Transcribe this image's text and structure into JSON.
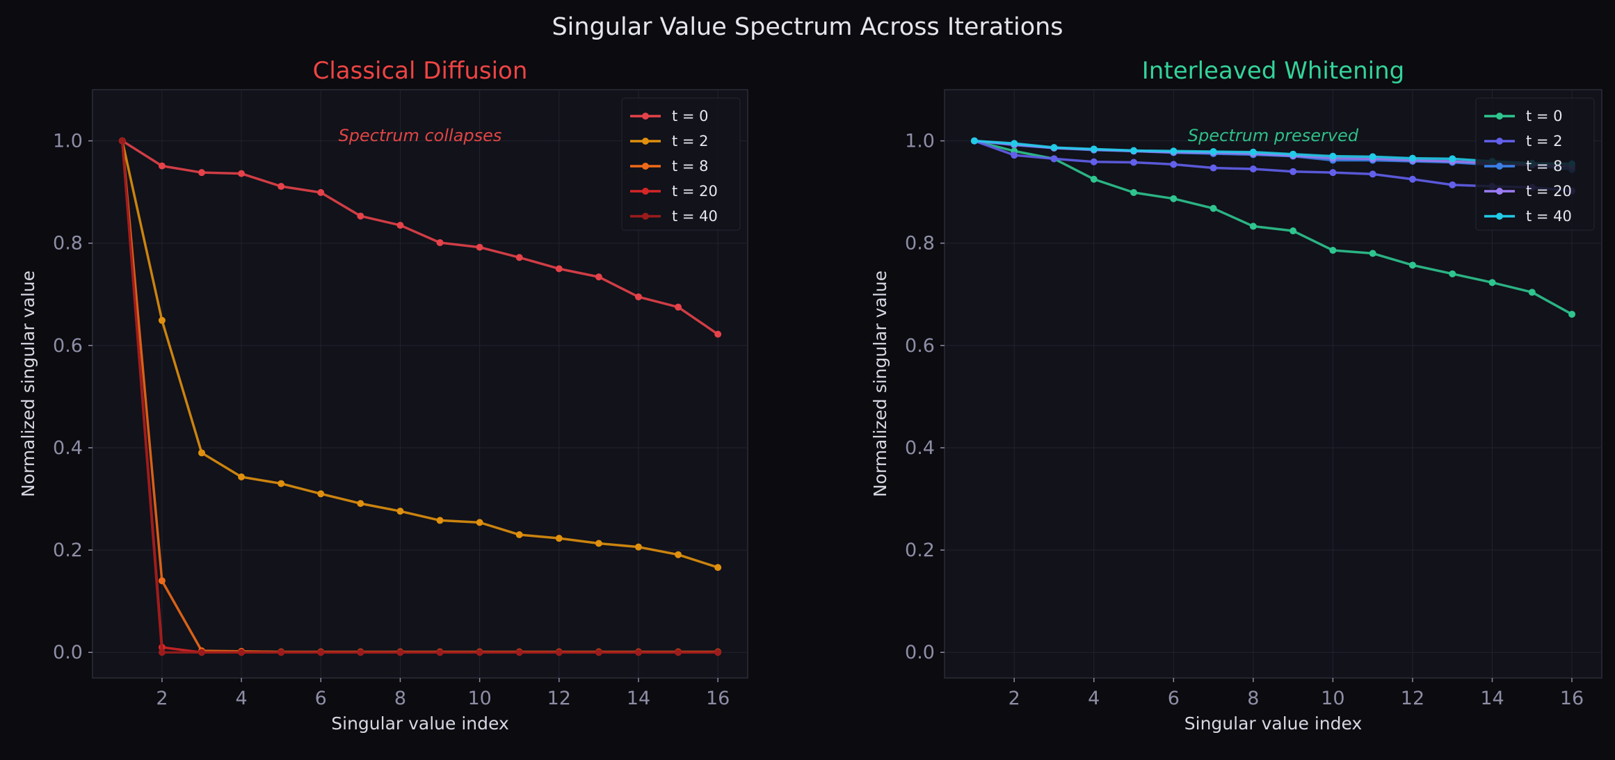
{
  "figure_title": "Singular Value Spectrum Across Iterations",
  "colors": {
    "background": "#0b0b10",
    "axes_bg": "#11121a",
    "tick": "#8e8ea6",
    "label": "#d8d8e4",
    "grid": "#22232d"
  },
  "chart_data": [
    {
      "type": "line",
      "title": "Classical Diffusion",
      "title_color": "#ef4444",
      "xlabel": "Singular value index",
      "ylabel": "Normalized singular value",
      "xlim": [
        0.25,
        16.75
      ],
      "ylim": [
        -0.05,
        1.1
      ],
      "xticks": [
        2,
        4,
        6,
        8,
        10,
        12,
        14,
        16
      ],
      "yticks": [
        "0.0",
        "0.2",
        "0.4",
        "0.6",
        "0.8",
        "1.0"
      ],
      "grid": true,
      "legend": "top-right",
      "annotation": {
        "text": "Spectrum collapses",
        "color": "#e04545"
      },
      "x": [
        1,
        2,
        3,
        4,
        5,
        6,
        7,
        8,
        9,
        10,
        11,
        12,
        13,
        14,
        15,
        16
      ],
      "series": [
        {
          "name": "t = 0",
          "color": "#e5424a",
          "values": [
            1.0,
            0.951,
            0.938,
            0.936,
            0.911,
            0.899,
            0.853,
            0.835,
            0.801,
            0.792,
            0.772,
            0.75,
            0.734,
            0.695,
            0.675,
            0.622
          ]
        },
        {
          "name": "t = 2",
          "color": "#e0900e",
          "values": [
            1.0,
            0.649,
            0.39,
            0.343,
            0.33,
            0.31,
            0.291,
            0.276,
            0.258,
            0.254,
            0.23,
            0.223,
            0.213,
            0.206,
            0.191,
            0.166
          ]
        },
        {
          "name": "t = 8",
          "color": "#ee6a18",
          "values": [
            1.0,
            0.14,
            0.003,
            0.002,
            0.001,
            0.001,
            0.001,
            0.001,
            0.001,
            0.001,
            0.001,
            0.001,
            0.001,
            0.001,
            0.001,
            0.001
          ]
        },
        {
          "name": "t = 20",
          "color": "#d42626",
          "values": [
            1.0,
            0.01,
            0.0,
            0.0,
            0.0,
            0.0,
            0.0,
            0.0,
            0.0,
            0.0,
            0.0,
            0.0,
            0.0,
            0.0,
            0.0,
            0.0
          ]
        },
        {
          "name": "t = 40",
          "color": "#9b1c1c",
          "values": [
            1.0,
            0.0,
            0.0,
            0.0,
            0.0,
            0.0,
            0.0,
            0.0,
            0.0,
            0.0,
            0.0,
            0.0,
            0.0,
            0.0,
            0.0,
            0.0
          ]
        }
      ]
    },
    {
      "type": "line",
      "title": "Interleaved Whitening",
      "title_color": "#34d399",
      "xlabel": "Singular value index",
      "ylabel": "Normalized singular value",
      "xlim": [
        0.25,
        16.75
      ],
      "ylim": [
        -0.05,
        1.1
      ],
      "xticks": [
        2,
        4,
        6,
        8,
        10,
        12,
        14,
        16
      ],
      "yticks": [
        "0.0",
        "0.2",
        "0.4",
        "0.6",
        "0.8",
        "1.0"
      ],
      "grid": true,
      "legend": "top-right",
      "annotation": {
        "text": "Spectrum preserved",
        "color": "#2fbf87"
      },
      "x": [
        1,
        2,
        3,
        4,
        5,
        6,
        7,
        8,
        9,
        10,
        11,
        12,
        13,
        14,
        15,
        16
      ],
      "series": [
        {
          "name": "t = 0",
          "color": "#2fc58f",
          "values": [
            1.0,
            0.98,
            0.965,
            0.925,
            0.899,
            0.887,
            0.868,
            0.833,
            0.824,
            0.786,
            0.78,
            0.757,
            0.74,
            0.723,
            0.704,
            0.661
          ]
        },
        {
          "name": "t = 2",
          "color": "#6360ec",
          "values": [
            1.0,
            0.972,
            0.965,
            0.959,
            0.958,
            0.954,
            0.947,
            0.945,
            0.94,
            0.938,
            0.935,
            0.925,
            0.914,
            0.911,
            0.909,
            0.902
          ]
        },
        {
          "name": "t = 8",
          "color": "#3b7fe6",
          "values": [
            1.0,
            0.992,
            0.986,
            0.982,
            0.98,
            0.977,
            0.975,
            0.973,
            0.97,
            0.962,
            0.962,
            0.96,
            0.958,
            0.953,
            0.953,
            0.944
          ]
        },
        {
          "name": "t = 20",
          "color": "#9b7cf4",
          "values": [
            1.0,
            0.993,
            0.986,
            0.983,
            0.98,
            0.978,
            0.977,
            0.975,
            0.971,
            0.966,
            0.965,
            0.962,
            0.96,
            0.956,
            0.953,
            0.95
          ]
        },
        {
          "name": "t = 40",
          "color": "#22cbe8",
          "values": [
            1.0,
            0.995,
            0.987,
            0.984,
            0.981,
            0.98,
            0.979,
            0.978,
            0.974,
            0.97,
            0.969,
            0.966,
            0.965,
            0.96,
            0.956,
            0.955
          ]
        }
      ]
    }
  ]
}
